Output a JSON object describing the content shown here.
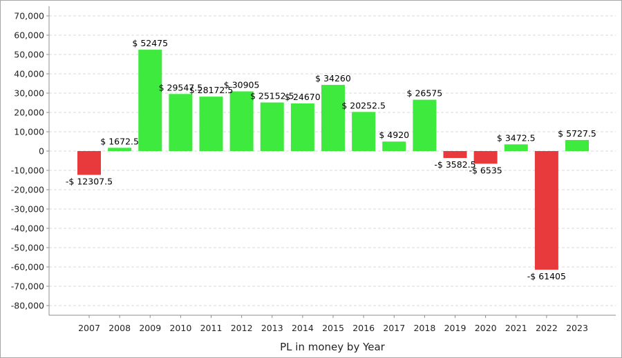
{
  "chart_data": {
    "type": "bar",
    "title": "",
    "xlabel": "PL in money by Year",
    "ylabel": "",
    "ylim": [
      -85000,
      75000
    ],
    "yticks": [
      70000,
      60000,
      50000,
      40000,
      30000,
      20000,
      10000,
      0,
      -10000,
      -20000,
      -30000,
      -40000,
      -50000,
      -60000,
      -70000,
      -80000
    ],
    "ytick_labels": [
      "70,000",
      "60,000",
      "50,000",
      "40,000",
      "30,000",
      "20,000",
      "10,000",
      "0",
      "-10,000",
      "-20,000",
      "-30,000",
      "-40,000",
      "-50,000",
      "-60,000",
      "-70,000",
      "-80,000"
    ],
    "grid": true,
    "legend": "none",
    "categories": [
      "2007",
      "2008",
      "2009",
      "2010",
      "2011",
      "2012",
      "2013",
      "2014",
      "2015",
      "2016",
      "2017",
      "2018",
      "2019",
      "2020",
      "2021",
      "2022",
      "2023"
    ],
    "values": [
      -12307.5,
      1672.5,
      52475,
      29547.5,
      28172.5,
      30905,
      25152.5,
      24670,
      34260,
      20252.5,
      4920,
      26575,
      -3582.5,
      -6535,
      3472.5,
      -61405,
      5727.5
    ],
    "data_labels": [
      "-$ 12307.5",
      "$ 1672.5",
      "$ 52475",
      "$ 29547.5",
      "$ 28172.5",
      "$ 30905",
      "$ 25152.5",
      "$ 24670",
      "$ 34260",
      "$ 20252.5",
      "$ 4920",
      "$ 26575",
      "-$ 3582.5",
      "-$ 6535",
      "$ 3472.5",
      "-$ 61405",
      "$ 5727.5"
    ],
    "colors": {
      "positive": "#3eea3e",
      "negative": "#e8393d",
      "grid": "#d9d9d9",
      "axis": "#8c8c8c",
      "frame": "#a6a6a6"
    }
  }
}
